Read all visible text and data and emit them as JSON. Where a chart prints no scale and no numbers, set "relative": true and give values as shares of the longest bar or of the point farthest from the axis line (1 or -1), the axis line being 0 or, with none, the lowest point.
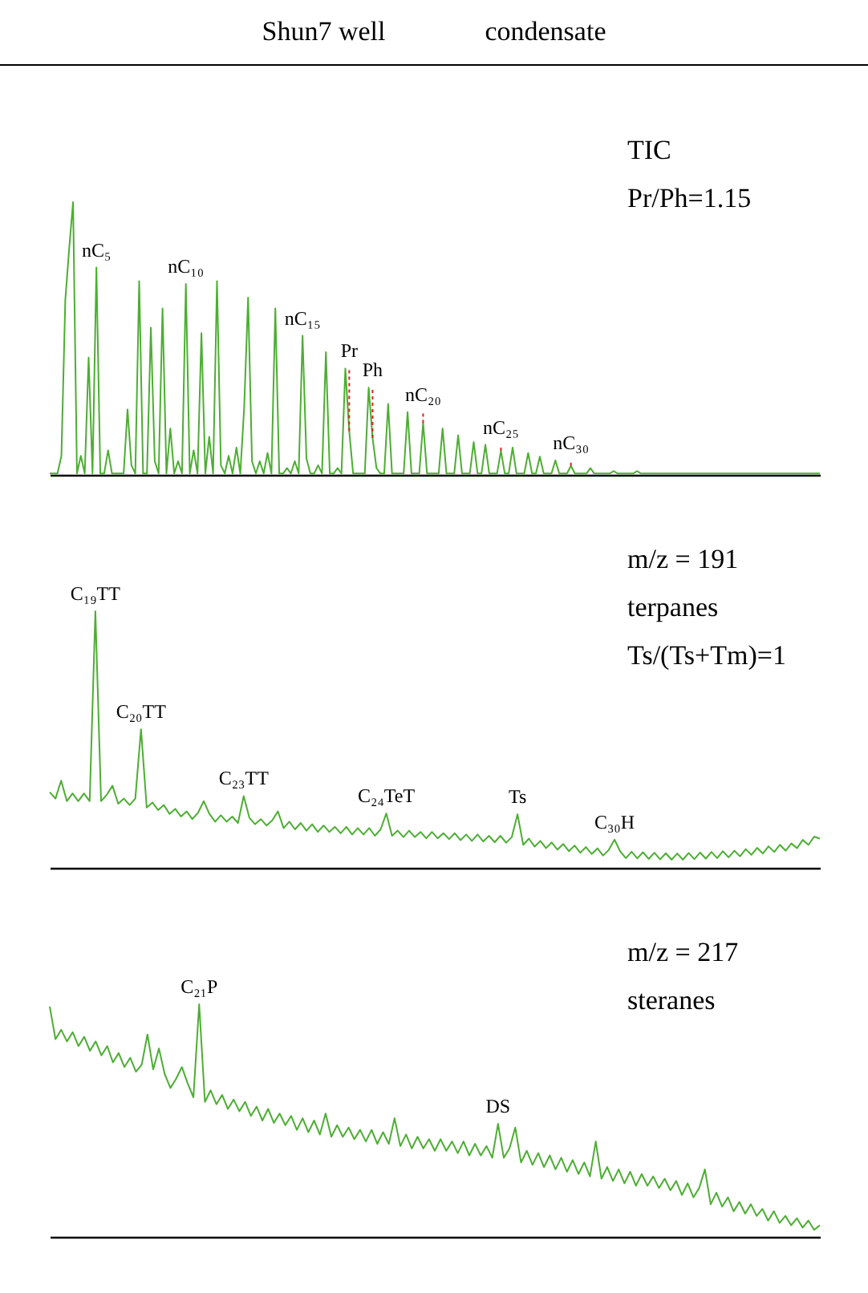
{
  "chart_data": [
    {
      "type": "line",
      "title": "Shun7 well",
      "subtitle": "condensate",
      "relative": true,
      "tick_labels": false,
      "annotations": [
        "TIC",
        "Pr/Ph=1.15",
        {
          "text": "nC₅",
          "y": 0.76
        },
        {
          "text": "nC₁₀",
          "y": 0.7
        },
        {
          "text": "nC₁₅",
          "y": 0.51
        },
        {
          "text": "Pr",
          "y": 0.16
        },
        {
          "text": "Ph",
          "y": 0.135
        },
        {
          "text": "nC₂₀",
          "y": 0.19
        },
        {
          "text": "nC₂₅",
          "y": 0.088
        },
        {
          "text": "nC₃₀",
          "y": 0.033
        }
      ],
      "categories": [
        null,
        null,
        null,
        null,
        null,
        null,
        null,
        null,
        null,
        null,
        null,
        null,
        null,
        null,
        null,
        null,
        null,
        null,
        null,
        null,
        null,
        null,
        null,
        null,
        null,
        null,
        null,
        null,
        null,
        null,
        null,
        null,
        null,
        null,
        null,
        null,
        null,
        null,
        null,
        null,
        null,
        null,
        null,
        null,
        null,
        null,
        null,
        null,
        null,
        null,
        null,
        null,
        null,
        null,
        null,
        null,
        null,
        null,
        null,
        null,
        null,
        null,
        null,
        null,
        null,
        null,
        null,
        null,
        null,
        null,
        null,
        null,
        null,
        null,
        null,
        null,
        null,
        null,
        null,
        null,
        null,
        null,
        null,
        null,
        null,
        null,
        null,
        null,
        null,
        null,
        null,
        null,
        null,
        null,
        null,
        null,
        null,
        null,
        null,
        null,
        null,
        null,
        null,
        null,
        null,
        null,
        null,
        null,
        null,
        null,
        null,
        null,
        null,
        null,
        null,
        null,
        null,
        null,
        null,
        null,
        null,
        null,
        null,
        null,
        null,
        null,
        null,
        null,
        null,
        null,
        null,
        null,
        null,
        null,
        null,
        null,
        null,
        null,
        null,
        null,
        null,
        null,
        null,
        null,
        null,
        null,
        null,
        null,
        null,
        null,
        null,
        null,
        null,
        null,
        null,
        null,
        null,
        null,
        null,
        null,
        null,
        null,
        null,
        null,
        null,
        null,
        null,
        null,
        null,
        null,
        null,
        null,
        null,
        null,
        null,
        null,
        null,
        null,
        null,
        null,
        null,
        null,
        null,
        null,
        null,
        null,
        null,
        null,
        null,
        null,
        null,
        null,
        null,
        null,
        null,
        null,
        null,
        null,
        null
      ],
      "series": [
        {
          "color": "#4cae32",
          "values": [
            0.005,
            0.005,
            0.005,
            0.07,
            0.64,
            0.83,
            1,
            0.005,
            0.07,
            0.005,
            0.43,
            0.005,
            0.76,
            0.005,
            0.005,
            0.09,
            0.005,
            0.005,
            0.005,
            0.005,
            0.24,
            0.035,
            0.005,
            0.71,
            0.005,
            0.005,
            0.54,
            0.05,
            0.005,
            0.61,
            0.005,
            0.17,
            0.005,
            0.05,
            0.005,
            0.7,
            0.005,
            0.09,
            0.005,
            0.52,
            0.005,
            0.14,
            0.005,
            0.71,
            0.035,
            0.005,
            0.07,
            0.005,
            0.1,
            0.005,
            0.25,
            0.65,
            0.05,
            0.005,
            0.05,
            0.005,
            0.08,
            0.005,
            0.61,
            0.005,
            0.005,
            0.025,
            0.005,
            0.05,
            0.005,
            0.51,
            0.06,
            0.005,
            0.005,
            0.035,
            0.005,
            0.45,
            0.005,
            0.005,
            0.025,
            0.005,
            0.39,
            0.16,
            0.005,
            0.005,
            0.005,
            0.005,
            0.32,
            0.135,
            0.025,
            0.005,
            0.005,
            0.26,
            0.005,
            0.005,
            0.005,
            0.005,
            0.23,
            0.005,
            0.005,
            0.005,
            0.19,
            0.005,
            0.005,
            0.005,
            0.005,
            0.17,
            0.005,
            0.005,
            0.005,
            0.145,
            0.005,
            0.005,
            0.005,
            0.12,
            0.005,
            0.005,
            0.11,
            0.005,
            0.005,
            0.005,
            0.088,
            0.005,
            0.005,
            0.1,
            0.005,
            0.005,
            0.005,
            0.08,
            0.005,
            0.005,
            0.067,
            0.005,
            0.005,
            0.005,
            0.053,
            0.005,
            0.005,
            0.005,
            0.033,
            0.005,
            0.005,
            0.005,
            0.005,
            0.025,
            0.005,
            0.005,
            0.005,
            0.005,
            0.005,
            0.014,
            0.005,
            0.005,
            0.005,
            0.005,
            0.005,
            0.014,
            0.005,
            0.005,
            0.005,
            0.005,
            0.005,
            0.005,
            0.005,
            0.005,
            0.005,
            0.005,
            0.005,
            0.005,
            0.005,
            0.005,
            0.005,
            0.005,
            0.005,
            0.005,
            0.005,
            0.005,
            0.005,
            0.005,
            0.005,
            0.005,
            0.005,
            0.005,
            0.005,
            0.005,
            0.005,
            0.005,
            0.005,
            0.005,
            0.005,
            0.005,
            0.005,
            0.005,
            0.005,
            0.005,
            0.005,
            0.005,
            0.005,
            0.005,
            0.005,
            0.005,
            0.005,
            0.005,
            0.005
          ]
        }
      ]
    },
    {
      "type": "line",
      "relative": true,
      "tick_labels": false,
      "annotations": [
        "m/z = 191",
        "terpanes",
        "Ts/(Ts+Tm)=1",
        {
          "text": "C₁₉TT",
          "y": 1
        },
        {
          "text": "C₂₀TT",
          "y": 0.54
        },
        {
          "text": "C₂₃TT",
          "y": 0.28
        },
        {
          "text": "C₂₄TeT",
          "y": 0.212
        },
        {
          "text": "Ts",
          "y": 0.209
        },
        {
          "text": "C₃₀H",
          "y": 0.11
        }
      ],
      "categories": [
        null,
        null,
        null,
        null,
        null,
        null,
        null,
        null,
        null,
        null,
        null,
        null,
        null,
        null,
        null,
        null,
        null,
        null,
        null,
        null,
        null,
        null,
        null,
        null,
        null,
        null,
        null,
        null,
        null,
        null,
        null,
        null,
        null,
        null,
        null,
        null,
        null,
        null,
        null,
        null,
        null,
        null,
        null,
        null,
        null,
        null,
        null,
        null,
        null,
        null,
        null,
        null,
        null,
        null,
        null,
        null,
        null,
        null,
        null,
        null,
        null,
        null,
        null,
        null,
        null,
        null,
        null,
        null,
        null,
        null,
        null,
        null,
        null,
        null,
        null,
        null,
        null,
        null,
        null,
        null,
        null,
        null,
        null,
        null,
        null,
        null,
        null,
        null,
        null,
        null,
        null,
        null,
        null,
        null,
        null,
        null,
        null,
        null,
        null,
        null,
        null,
        null,
        null,
        null,
        null,
        null,
        null,
        null,
        null,
        null,
        null,
        null,
        null,
        null,
        null,
        null,
        null,
        null,
        null,
        null,
        null,
        null,
        null,
        null,
        null,
        null,
        null,
        null,
        null,
        null,
        null,
        null,
        null,
        null,
        null,
        null
      ],
      "series": [
        {
          "color": "#4cae32",
          "values": [
            0.295,
            0.27,
            0.34,
            0.26,
            0.29,
            0.26,
            0.29,
            0.26,
            1,
            0.26,
            0.285,
            0.32,
            0.25,
            0.27,
            0.245,
            0.27,
            0.54,
            0.235,
            0.255,
            0.225,
            0.245,
            0.21,
            0.23,
            0.2,
            0.22,
            0.19,
            0.215,
            0.26,
            0.21,
            0.18,
            0.205,
            0.18,
            0.2,
            0.175,
            0.28,
            0.195,
            0.17,
            0.19,
            0.165,
            0.185,
            0.22,
            0.155,
            0.18,
            0.15,
            0.175,
            0.145,
            0.17,
            0.14,
            0.165,
            0.14,
            0.16,
            0.135,
            0.16,
            0.13,
            0.155,
            0.13,
            0.155,
            0.125,
            0.15,
            0.212,
            0.125,
            0.145,
            0.12,
            0.145,
            0.12,
            0.14,
            0.115,
            0.14,
            0.115,
            0.135,
            0.112,
            0.135,
            0.108,
            0.13,
            0.105,
            0.13,
            0.103,
            0.125,
            0.1,
            0.125,
            0.098,
            0.12,
            0.209,
            0.09,
            0.114,
            0.083,
            0.105,
            0.077,
            0.099,
            0.071,
            0.093,
            0.065,
            0.087,
            0.059,
            0.081,
            0.054,
            0.076,
            0.048,
            0.07,
            0.11,
            0.064,
            0.038,
            0.063,
            0.037,
            0.061,
            0.035,
            0.059,
            0.033,
            0.057,
            0.032,
            0.056,
            0.032,
            0.058,
            0.034,
            0.06,
            0.036,
            0.062,
            0.038,
            0.065,
            0.041,
            0.067,
            0.045,
            0.073,
            0.051,
            0.078,
            0.056,
            0.084,
            0.062,
            0.09,
            0.067,
            0.095,
            0.077,
            0.109,
            0.09,
            0.122,
            0.114
          ]
        }
      ]
    },
    {
      "type": "line",
      "relative": true,
      "tick_labels": false,
      "annotations": [
        "m/z = 217",
        "steranes",
        {
          "text": "C₂₁P",
          "y": 1
        },
        {
          "text": "DS",
          "y": 0.486
        }
      ],
      "categories": [
        null,
        null,
        null,
        null,
        null,
        null,
        null,
        null,
        null,
        null,
        null,
        null,
        null,
        null,
        null,
        null,
        null,
        null,
        null,
        null,
        null,
        null,
        null,
        null,
        null,
        null,
        null,
        null,
        null,
        null,
        null,
        null,
        null,
        null,
        null,
        null,
        null,
        null,
        null,
        null,
        null,
        null,
        null,
        null,
        null,
        null,
        null,
        null,
        null,
        null,
        null,
        null,
        null,
        null,
        null,
        null,
        null,
        null,
        null,
        null,
        null,
        null,
        null,
        null,
        null,
        null,
        null,
        null,
        null,
        null,
        null,
        null,
        null,
        null,
        null,
        null,
        null,
        null,
        null,
        null,
        null,
        null,
        null,
        null,
        null,
        null,
        null,
        null,
        null,
        null,
        null,
        null,
        null,
        null,
        null,
        null,
        null,
        null,
        null,
        null,
        null,
        null,
        null,
        null,
        null,
        null,
        null,
        null,
        null,
        null,
        null,
        null,
        null,
        null,
        null,
        null,
        null,
        null,
        null,
        null,
        null,
        null,
        null,
        null,
        null,
        null,
        null,
        null,
        null,
        null,
        null,
        null,
        null,
        null,
        null
      ],
      "series": [
        {
          "color": "#4cae32",
          "values": [
            0.99,
            0.85,
            0.89,
            0.84,
            0.88,
            0.82,
            0.86,
            0.8,
            0.84,
            0.78,
            0.82,
            0.75,
            0.79,
            0.73,
            0.77,
            0.71,
            0.74,
            0.87,
            0.72,
            0.81,
            0.7,
            0.64,
            0.68,
            0.73,
            0.66,
            0.6,
            1,
            0.58,
            0.63,
            0.57,
            0.61,
            0.55,
            0.59,
            0.54,
            0.58,
            0.52,
            0.56,
            0.5,
            0.55,
            0.49,
            0.53,
            0.48,
            0.52,
            0.46,
            0.51,
            0.45,
            0.5,
            0.44,
            0.53,
            0.43,
            0.48,
            0.43,
            0.47,
            0.42,
            0.46,
            0.41,
            0.46,
            0.4,
            0.45,
            0.4,
            0.51,
            0.39,
            0.44,
            0.38,
            0.43,
            0.38,
            0.42,
            0.37,
            0.42,
            0.37,
            0.41,
            0.36,
            0.41,
            0.35,
            0.4,
            0.35,
            0.39,
            0.34,
            0.486,
            0.34,
            0.38,
            0.47,
            0.32,
            0.37,
            0.31,
            0.36,
            0.3,
            0.35,
            0.29,
            0.34,
            0.28,
            0.33,
            0.27,
            0.32,
            0.26,
            0.41,
            0.25,
            0.3,
            0.24,
            0.29,
            0.23,
            0.28,
            0.22,
            0.27,
            0.22,
            0.26,
            0.21,
            0.25,
            0.2,
            0.24,
            0.18,
            0.23,
            0.17,
            0.21,
            0.29,
            0.14,
            0.19,
            0.13,
            0.17,
            0.11,
            0.15,
            0.1,
            0.14,
            0.09,
            0.12,
            0.07,
            0.11,
            0.06,
            0.09,
            0.05,
            0.08,
            0.04,
            0.07,
            0.03,
            0.05
          ]
        }
      ]
    }
  ]
}
